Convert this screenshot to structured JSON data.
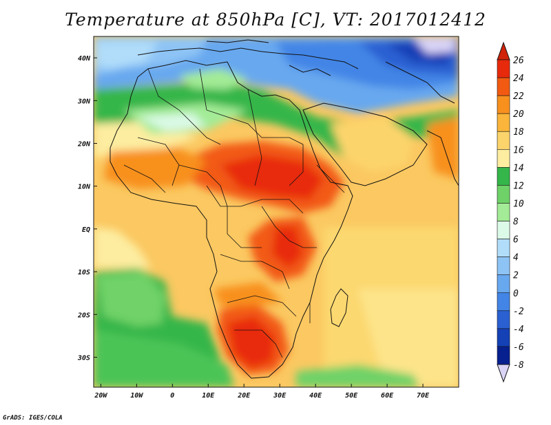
{
  "title": "Temperature at 850hPa [C], VT: 2017012412",
  "footer": "GrADS: IGES/COLA",
  "map": {
    "lon_range": [
      -22,
      80
    ],
    "lat_range": [
      -37,
      45
    ],
    "lon_ticks": [
      {
        "value": -20,
        "label": "20W"
      },
      {
        "value": -10,
        "label": "10W"
      },
      {
        "value": 0,
        "label": "0"
      },
      {
        "value": 10,
        "label": "10E"
      },
      {
        "value": 20,
        "label": "20E"
      },
      {
        "value": 30,
        "label": "30E"
      },
      {
        "value": 40,
        "label": "40E"
      },
      {
        "value": 50,
        "label": "50E"
      },
      {
        "value": 60,
        "label": "60E"
      },
      {
        "value": 70,
        "label": "70E"
      }
    ],
    "lat_ticks": [
      {
        "value": 40,
        "label": "40N"
      },
      {
        "value": 30,
        "label": "30N"
      },
      {
        "value": 20,
        "label": "20N"
      },
      {
        "value": 10,
        "label": "10N"
      },
      {
        "value": 0,
        "label": "EQ"
      },
      {
        "value": -10,
        "label": "10S"
      },
      {
        "value": -20,
        "label": "20S"
      },
      {
        "value": -30,
        "label": "30S"
      }
    ]
  },
  "colorbar": {
    "labels": [
      "26",
      "24",
      "22",
      "20",
      "18",
      "16",
      "14",
      "12",
      "10",
      "8",
      "6",
      "4",
      "2",
      "0",
      "-2",
      "-4",
      "-6",
      "-8"
    ],
    "colors": [
      "#e82a0c",
      "#f25a12",
      "#f8901e",
      "#fab53a",
      "#fcd46c",
      "#fdeda0",
      "#34b64a",
      "#6fd268",
      "#a3eb96",
      "#dcfae8",
      "#b1ddfa",
      "#8ec4f5",
      "#68a8ef",
      "#4285e6",
      "#2a60d2",
      "#1441b6",
      "#07208f"
    ],
    "over_color": "#d0230a",
    "under_color": "#dad4f6"
  }
}
